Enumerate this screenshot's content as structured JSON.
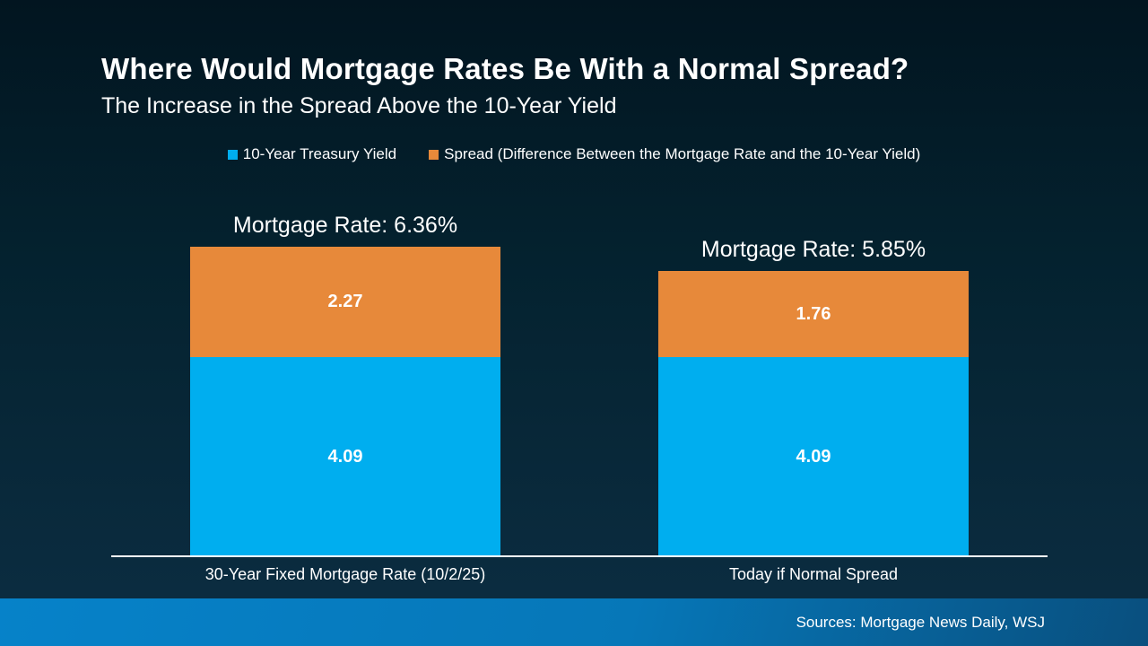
{
  "header": {
    "title": "Where Would Mortgage Rates Be With a Normal Spread?",
    "subtitle": "The Increase in the Spread Above the 10-Year Yield"
  },
  "legend": [
    {
      "label": "10-Year Treasury Yield",
      "color": "#00AEEF"
    },
    {
      "label": "Spread (Difference Between the Mortgage Rate and the 10-Year Yield)",
      "color": "#E7893A"
    }
  ],
  "chart_data": {
    "type": "bar",
    "stacked": true,
    "categories": [
      "30-Year Fixed Mortgage Rate (10/2/25)",
      "Today if Normal Spread"
    ],
    "series": [
      {
        "name": "10-Year Treasury Yield",
        "key": "yield",
        "color": "#00AEEF",
        "values": [
          4.09,
          4.09
        ]
      },
      {
        "name": "Spread (Difference Between the Mortgage Rate and the 10-Year Yield)",
        "key": "spread",
        "color": "#E7893A",
        "values": [
          2.27,
          1.76
        ]
      }
    ],
    "totals": [
      6.36,
      5.85
    ],
    "total_labels": [
      "Mortgage Rate: 6.36%",
      "Mortgage Rate: 5.85%"
    ],
    "value_labels": [
      [
        "4.09",
        "2.27"
      ],
      [
        "4.09",
        "1.76"
      ]
    ],
    "ylim": [
      0,
      8
    ],
    "grid": false,
    "legend_position": "top"
  },
  "footer": {
    "sources": "Sources: Mortgage News Daily, WSJ"
  },
  "colors": {
    "background_top": "#021520",
    "background_bottom": "#0d2d41",
    "bar_blue": "#00AEEF",
    "bar_orange": "#E7893A",
    "footer_blue_left": "#0682c9",
    "footer_blue_right": "#094f7e",
    "axis": "#ffffff"
  }
}
